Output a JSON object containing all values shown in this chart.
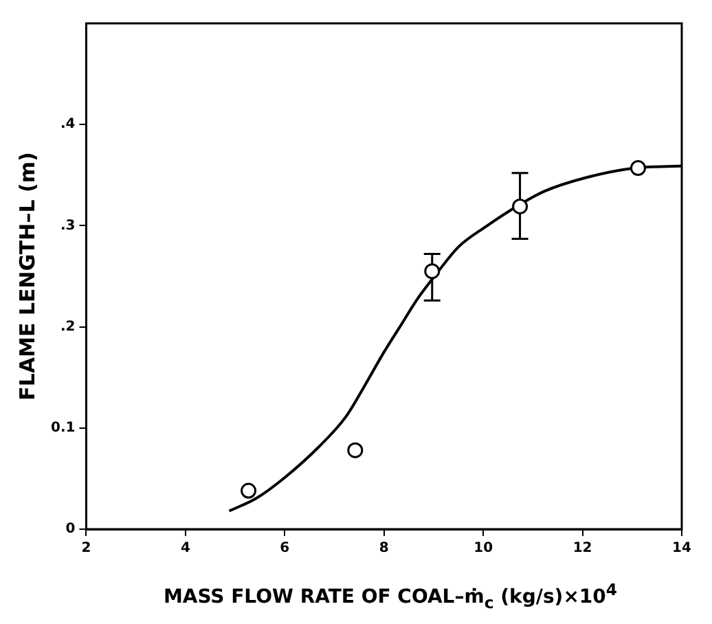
{
  "chart_data": {
    "type": "scatter",
    "xlabel": "MASS FLOW RATE OF COAL–ṁ$_{c}$ (kg/s)×10$^{4}$",
    "ylabel": "FLAME LENGTH–L (m)",
    "xlim": [
      2,
      14
    ],
    "xticks": [
      2,
      4,
      6,
      8,
      10,
      12,
      14
    ],
    "ylim": [
      0,
      0.5
    ],
    "yticks": [
      0,
      {
        "value": 0.1,
        "label": "0.1"
      },
      {
        "value": 0.2,
        "label": ".2"
      },
      {
        "value": 0.3,
        "label": ".3"
      },
      {
        "value": 0.4,
        "label": ".4"
      }
    ],
    "grid": false,
    "legend": false,
    "series": [
      {
        "marker": "circle",
        "color": "#000000",
        "x": [
          5.27,
          7.42,
          8.97,
          10.74,
          13.12
        ],
        "values": [
          0.038,
          0.078,
          0.255,
          0.319,
          0.357
        ],
        "errors": [
          null,
          null,
          [
            0.226,
            0.272
          ],
          [
            0.287,
            0.352
          ],
          null
        ]
      },
      {
        "type": "line",
        "marker": "none",
        "color": "#000000",
        "line_style": "solid",
        "x": [
          4.88,
          5.41,
          6.0,
          6.68,
          7.23,
          7.59,
          8.0,
          8.32,
          8.68,
          9.05,
          9.5,
          10.05,
          10.74,
          11.23,
          12.03,
          13.05,
          14
        ],
        "values": [
          0.018,
          0.03,
          0.051,
          0.081,
          0.111,
          0.14,
          0.175,
          0.2,
          0.228,
          0.252,
          0.279,
          0.299,
          0.321,
          0.334,
          0.347,
          0.357,
          0.359
        ]
      }
    ]
  }
}
